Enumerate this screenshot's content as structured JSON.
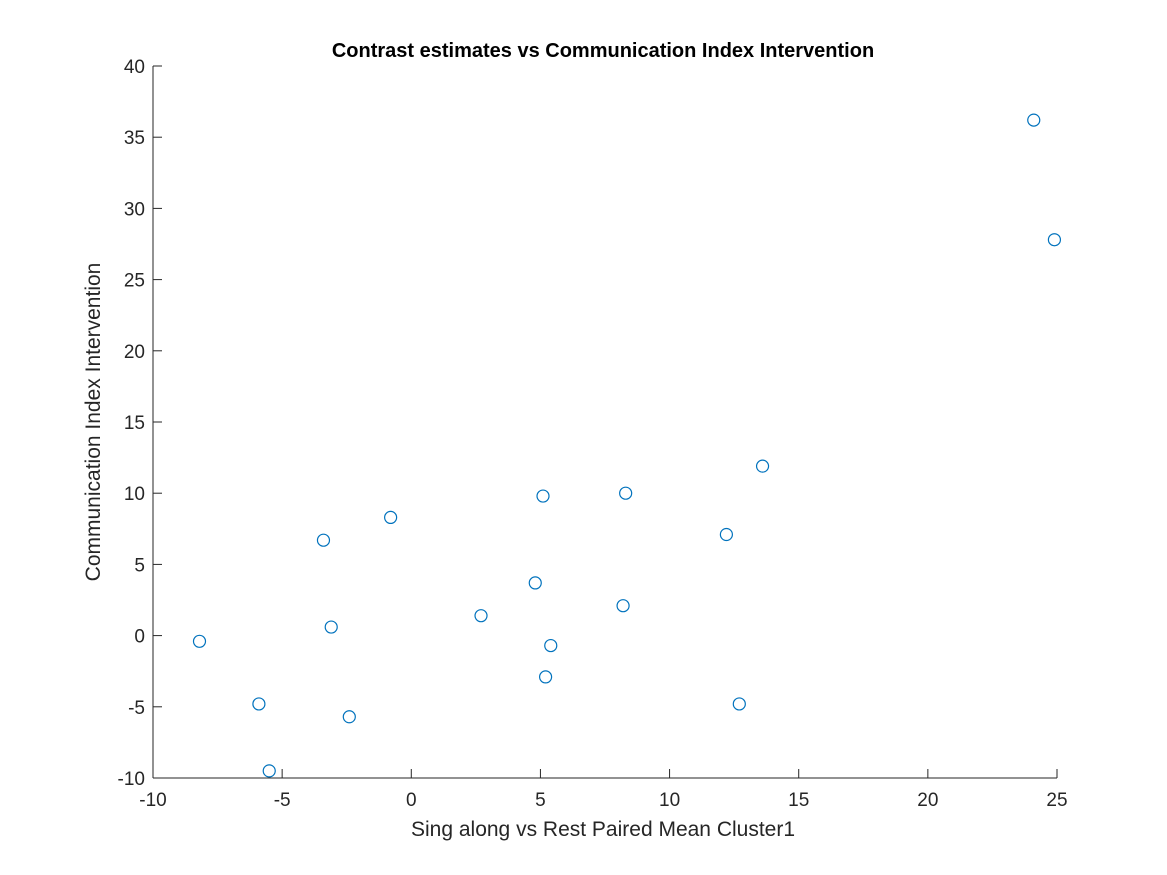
{
  "chart_data": {
    "type": "scatter",
    "title": "Contrast estimates vs Communication Index Intervention",
    "xlabel": "Sing along vs Rest Paired Mean Cluster1",
    "ylabel": "Communication Index Intervention",
    "xlim": [
      -10,
      25
    ],
    "ylim": [
      -10,
      40
    ],
    "xticks": [
      -10,
      -5,
      0,
      5,
      10,
      15,
      20,
      25
    ],
    "yticks": [
      -10,
      -5,
      0,
      5,
      10,
      15,
      20,
      25,
      30,
      35,
      40
    ],
    "xtick_labels": [
      "-10",
      "-5",
      "0",
      "5",
      "10",
      "15",
      "20",
      "25"
    ],
    "ytick_labels": [
      "-10",
      "-5",
      "0",
      "5",
      "10",
      "15",
      "20",
      "25",
      "30",
      "35",
      "40"
    ],
    "grid": false,
    "legend": "none",
    "marker": "open-circle",
    "marker_color": "#0072BD",
    "points": [
      {
        "x": -8.2,
        "y": -0.4
      },
      {
        "x": -5.9,
        "y": -4.8
      },
      {
        "x": -5.5,
        "y": -9.5
      },
      {
        "x": -3.4,
        "y": 6.7
      },
      {
        "x": -3.1,
        "y": 0.6
      },
      {
        "x": -2.4,
        "y": -5.7
      },
      {
        "x": -0.8,
        "y": 8.3
      },
      {
        "x": 2.7,
        "y": 1.4
      },
      {
        "x": 4.8,
        "y": 3.7
      },
      {
        "x": 5.1,
        "y": 9.8
      },
      {
        "x": 5.2,
        "y": -2.9
      },
      {
        "x": 5.4,
        "y": -0.7
      },
      {
        "x": 8.2,
        "y": 2.1
      },
      {
        "x": 8.3,
        "y": 10.0
      },
      {
        "x": 12.2,
        "y": 7.1
      },
      {
        "x": 12.7,
        "y": -4.8
      },
      {
        "x": 13.6,
        "y": 11.9
      },
      {
        "x": 24.1,
        "y": 36.2
      },
      {
        "x": 24.9,
        "y": 27.8
      }
    ]
  }
}
